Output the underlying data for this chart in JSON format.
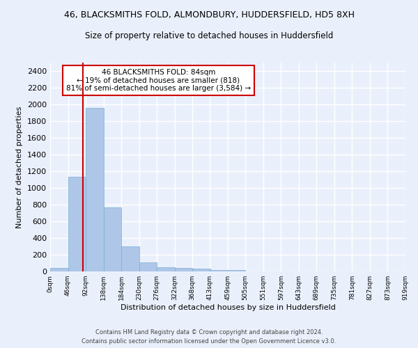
{
  "title_line1": "46, BLACKSMITHS FOLD, ALMONDBURY, HUDDERSFIELD, HD5 8XH",
  "title_line2": "Size of property relative to detached houses in Huddersfield",
  "xlabel": "Distribution of detached houses by size in Huddersfield",
  "ylabel": "Number of detached properties",
  "bar_values": [
    40,
    1130,
    1960,
    770,
    300,
    105,
    50,
    45,
    35,
    20,
    20,
    0,
    0,
    0,
    0,
    0,
    0,
    0,
    0,
    0
  ],
  "bin_edges": [
    0,
    46,
    92,
    138,
    184,
    230,
    276,
    322,
    368,
    413,
    459,
    505,
    551,
    597,
    643,
    689,
    735,
    781,
    827,
    873,
    919
  ],
  "tick_labels": [
    "0sqm",
    "46sqm",
    "92sqm",
    "138sqm",
    "184sqm",
    "230sqm",
    "276sqm",
    "322sqm",
    "368sqm",
    "413sqm",
    "459sqm",
    "505sqm",
    "551sqm",
    "597sqm",
    "643sqm",
    "689sqm",
    "735sqm",
    "781sqm",
    "827sqm",
    "873sqm",
    "919sqm"
  ],
  "bar_color": "#aec6e8",
  "bar_edge_color": "#7aafd4",
  "red_line_x": 84,
  "annotation_text": "46 BLACKSMITHS FOLD: 84sqm\n← 19% of detached houses are smaller (818)\n81% of semi-detached houses are larger (3,584) →",
  "annotation_box_color": "#ffffff",
  "annotation_box_edge_color": "#cc0000",
  "red_line_color": "#cc0000",
  "bg_color": "#eaf0fb",
  "grid_color": "#ffffff",
  "fig_bg_color": "#eaf0fb",
  "yticks": [
    0,
    200,
    400,
    600,
    800,
    1000,
    1200,
    1400,
    1600,
    1800,
    2000,
    2200,
    2400
  ],
  "ylim": [
    0,
    2500
  ],
  "footnote1": "Contains HM Land Registry data © Crown copyright and database right 2024.",
  "footnote2": "Contains public sector information licensed under the Open Government Licence v3.0."
}
